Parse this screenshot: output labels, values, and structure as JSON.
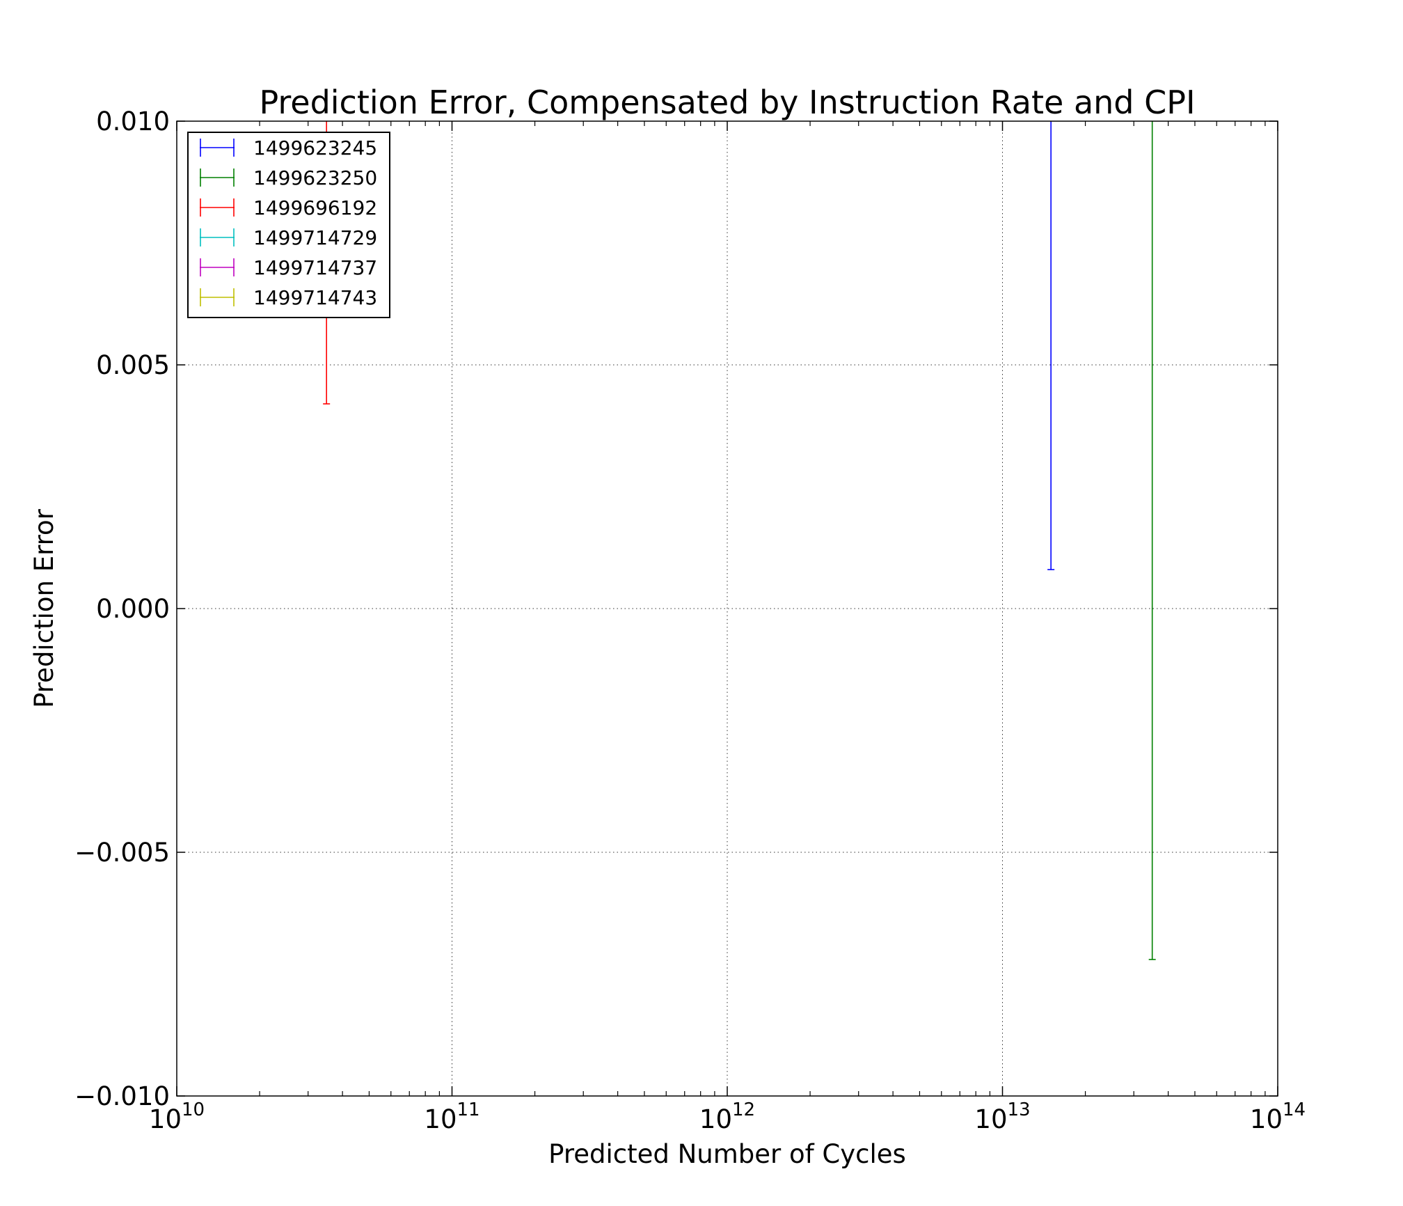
{
  "chart_data": {
    "type": "errorbar",
    "title": "Prediction Error, Compensated by Instruction Rate and CPI",
    "xlabel": "Predicted Number of Cycles",
    "ylabel": "Prediction Error",
    "xscale": "log",
    "xlim": [
      10000000000,
      100000000000000
    ],
    "ylim": [
      -0.01,
      0.01
    ],
    "x_ticks": [
      {
        "value": 10000000000,
        "base": "10",
        "exp": "10"
      },
      {
        "value": 100000000000,
        "base": "10",
        "exp": "11"
      },
      {
        "value": 1000000000000,
        "base": "10",
        "exp": "12"
      },
      {
        "value": 10000000000000,
        "base": "10",
        "exp": "13"
      },
      {
        "value": 100000000000000,
        "base": "10",
        "exp": "14"
      }
    ],
    "y_ticks": [
      {
        "value": 0.01,
        "label": "0.010"
      },
      {
        "value": 0.005,
        "label": "0.005"
      },
      {
        "value": 0.0,
        "label": "0.000"
      },
      {
        "value": -0.005,
        "label": "−0.005"
      },
      {
        "value": -0.01,
        "label": "−0.010"
      }
    ],
    "grid": true,
    "legend_position": "top-left",
    "series": [
      {
        "name": "1499623245",
        "color": "#0000ff",
        "x": 15000000000000,
        "y_low": 0.0008,
        "y_high": 0.0105
      },
      {
        "name": "1499623250",
        "color": "#008000",
        "x": 35000000000000,
        "y_low": -0.0072,
        "y_high": 0.0105
      },
      {
        "name": "1499696192",
        "color": "#ff0000",
        "x": 35000000000,
        "y_low": 0.0042,
        "y_high": 0.0105
      },
      {
        "name": "1499714729",
        "color": "#00bfbf"
      },
      {
        "name": "1499714737",
        "color": "#bf00bf"
      },
      {
        "name": "1499714743",
        "color": "#bfbf00"
      }
    ]
  }
}
